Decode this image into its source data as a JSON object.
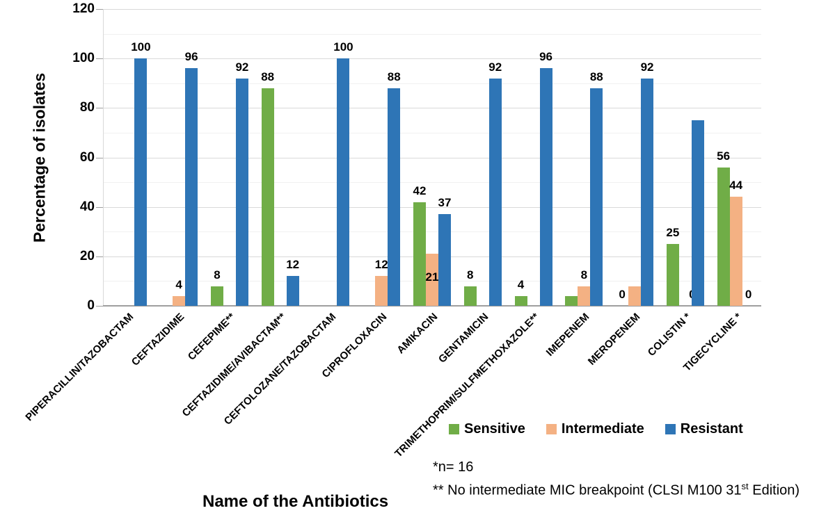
{
  "chart_data": {
    "type": "bar",
    "title": "",
    "xlabel": "Name of the Antibiotics",
    "ylabel": "Percentage of isolates",
    "ylim": [
      0,
      120
    ],
    "yticks": [
      0,
      20,
      40,
      60,
      80,
      100,
      120
    ],
    "grid": "horizontal major gridlines every 20, faint minor every 10",
    "legend_position": "bottom-right below plot",
    "categories": [
      "PIPERACILLIN/TAZOBACTAM",
      "CEFTAZIDIME",
      "CEFEPIME**",
      "CEFTAZIDIME/AVIBACTAM**",
      "CEFTOLOZANE/TAZOBACTAM",
      "CIPROFLOXACIN",
      "AMIKACIN",
      "GENTAMICIN",
      "TRIMETHOPRIM/SULFMETHOXAZOLE**",
      "IMEPENEM",
      "MEROPENEM",
      "COLISTIN *",
      "TIGECYCLINE *"
    ],
    "series": [
      {
        "name": "Sensitive",
        "color": "#70AD47",
        "values": [
          null,
          null,
          8,
          88,
          null,
          null,
          42,
          8,
          4,
          4,
          0,
          25,
          56
        ],
        "labels": [
          null,
          null,
          "8",
          "88",
          null,
          null,
          "42",
          "8",
          "4",
          null,
          "0",
          "25",
          "56"
        ],
        "label_offsets": {}
      },
      {
        "name": "Intermediate",
        "color": "#F4B183",
        "values": [
          null,
          4,
          null,
          null,
          null,
          12,
          21,
          null,
          null,
          8,
          8,
          0,
          44
        ],
        "labels": [
          null,
          "4",
          null,
          null,
          null,
          "12",
          "21",
          null,
          null,
          "8",
          null,
          "0",
          "44"
        ],
        "label_offsets": {
          "6": {
            "dy": 50
          },
          "11": {
            "dx": 10
          }
        }
      },
      {
        "name": "Resistant",
        "color": "#2E75B6",
        "values": [
          100,
          96,
          92,
          12,
          100,
          88,
          37,
          92,
          96,
          88,
          92,
          75,
          0
        ],
        "labels": [
          "100",
          "96",
          "92",
          "12",
          "100",
          "88",
          "37",
          "92",
          "96",
          "88",
          "92",
          null,
          "0"
        ],
        "label_offsets": {}
      }
    ],
    "notes": [
      {
        "text": "*n= 16"
      },
      {
        "pre": "** No intermediate MIC breakpoint (CLSI M100 31",
        "sup": "st",
        "post": " Edition)"
      }
    ]
  },
  "colors": {
    "sensitive": "#70AD47",
    "intermediate": "#F4B183",
    "resistant": "#2E75B6",
    "gridline_major": "#D9D9D9",
    "gridline_minor": "#F0F0F0",
    "axis_line": "#9E9E9E",
    "text": "#000000"
  }
}
